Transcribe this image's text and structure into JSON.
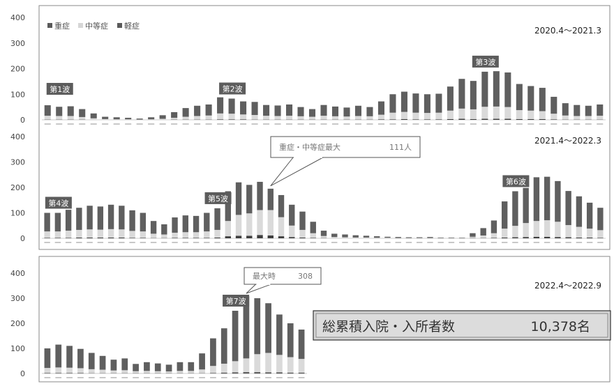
{
  "legend": [
    {
      "label": "重症",
      "color": "#5a5a5a"
    },
    {
      "label": "中等症",
      "color": "#d6d6d6"
    },
    {
      "label": "軽症",
      "color": "#5a5a5a"
    }
  ],
  "summary": {
    "label": "総累積入院・入所者数",
    "value": "10,378名"
  },
  "chart_data": [
    {
      "type": "bar",
      "stacked": true,
      "period": "2020.4～2021.3",
      "ylim": [
        0,
        400
      ],
      "yticks": [
        "400",
        "300",
        "200",
        "100",
        "0"
      ],
      "series_names": [
        "重症",
        "中等症",
        "軽症"
      ],
      "wave_labels": [
        {
          "label": "第1波",
          "index": 1
        },
        {
          "label": "第2波",
          "index": 16
        },
        {
          "label": "第3波",
          "index": 38
        }
      ],
      "totals": [
        57,
        51,
        53,
        42,
        25,
        12,
        10,
        8,
        5,
        10,
        18,
        30,
        46,
        55,
        60,
        88,
        83,
        72,
        70,
        58,
        56,
        60,
        50,
        42,
        58,
        52,
        48,
        55,
        50,
        72,
        100,
        110,
        103,
        100,
        102,
        130,
        160,
        152,
        188,
        190,
        185,
        140,
        132,
        125,
        90,
        65,
        58,
        55,
        60
      ],
      "moderate": [
        15,
        14,
        14,
        10,
        6,
        3,
        2,
        2,
        1,
        2,
        4,
        7,
        11,
        14,
        16,
        23,
        22,
        19,
        18,
        15,
        14,
        15,
        13,
        11,
        15,
        13,
        12,
        14,
        13,
        18,
        26,
        28,
        26,
        25,
        26,
        33,
        40,
        38,
        47,
        48,
        46,
        35,
        33,
        31,
        22,
        16,
        14,
        14,
        15
      ],
      "severe": [
        1,
        1,
        1,
        1,
        0,
        0,
        0,
        0,
        0,
        0,
        0,
        1,
        1,
        1,
        1,
        2,
        2,
        2,
        1,
        1,
        1,
        1,
        1,
        1,
        1,
        1,
        1,
        1,
        1,
        2,
        2,
        3,
        2,
        2,
        2,
        3,
        4,
        3,
        4,
        4,
        4,
        3,
        3,
        3,
        2,
        1,
        1,
        1,
        1
      ]
    },
    {
      "type": "bar",
      "stacked": true,
      "period": "2021.4～2022.3",
      "ylim": [
        0,
        400
      ],
      "yticks": [
        "400",
        "300",
        "200",
        "100",
        "0"
      ],
      "series_names": [
        "重症",
        "中等症",
        "軽症"
      ],
      "wave_labels": [
        {
          "label": "第4波",
          "index": 1
        },
        {
          "label": "第5波",
          "index": 16
        },
        {
          "label": "第6波",
          "index": 44
        }
      ],
      "callout": {
        "label": "重症・中等症最大",
        "value": "111人",
        "index": 21
      },
      "totals": [
        100,
        100,
        112,
        120,
        128,
        125,
        132,
        128,
        110,
        100,
        68,
        55,
        82,
        90,
        88,
        100,
        118,
        185,
        220,
        210,
        222,
        195,
        170,
        132,
        105,
        65,
        30,
        18,
        15,
        12,
        10,
        8,
        6,
        5,
        4,
        4,
        5,
        3,
        3,
        2,
        20,
        40,
        70,
        145,
        185,
        198,
        240,
        242,
        225,
        186,
        165,
        140,
        120
      ],
      "moderate": [
        25,
        25,
        28,
        30,
        32,
        31,
        33,
        32,
        27,
        25,
        17,
        14,
        20,
        22,
        22,
        25,
        30,
        60,
        82,
        88,
        98,
        100,
        75,
        45,
        30,
        18,
        8,
        5,
        4,
        3,
        3,
        2,
        2,
        1,
        1,
        1,
        1,
        1,
        1,
        0,
        5,
        10,
        18,
        35,
        45,
        55,
        62,
        65,
        60,
        48,
        42,
        35,
        30
      ],
      "severe": [
        2,
        2,
        2,
        3,
        3,
        3,
        3,
        3,
        2,
        2,
        1,
        1,
        2,
        2,
        2,
        2,
        3,
        8,
        10,
        10,
        13,
        11,
        8,
        5,
        3,
        2,
        1,
        0,
        0,
        0,
        0,
        0,
        0,
        0,
        0,
        0,
        0,
        0,
        0,
        0,
        1,
        1,
        2,
        3,
        4,
        5,
        6,
        6,
        5,
        4,
        3,
        3,
        2
      ]
    },
    {
      "type": "bar",
      "stacked": true,
      "period": "2022.4～2022.9",
      "ylim": [
        0,
        400
      ],
      "yticks": [
        "400",
        "300",
        "200",
        "100",
        "0"
      ],
      "series_names": [
        "重症",
        "中等症",
        "軽症"
      ],
      "wave_labels": [
        {
          "label": "第7波",
          "index": 17
        }
      ],
      "callout": {
        "label": "最大時",
        "value": "308",
        "index": 18
      },
      "totals": [
        100,
        115,
        110,
        98,
        82,
        70,
        55,
        60,
        38,
        45,
        40,
        35,
        45,
        45,
        80,
        140,
        180,
        250,
        308,
        300,
        280,
        235,
        200,
        175
      ],
      "moderate": [
        20,
        22,
        21,
        19,
        16,
        14,
        11,
        12,
        8,
        9,
        8,
        7,
        9,
        9,
        15,
        28,
        36,
        45,
        55,
        72,
        78,
        70,
        62,
        55
      ],
      "severe": [
        2,
        2,
        2,
        2,
        1,
        1,
        1,
        1,
        1,
        1,
        1,
        1,
        1,
        1,
        1,
        2,
        3,
        4,
        5,
        5,
        4,
        4,
        3,
        3
      ]
    }
  ]
}
